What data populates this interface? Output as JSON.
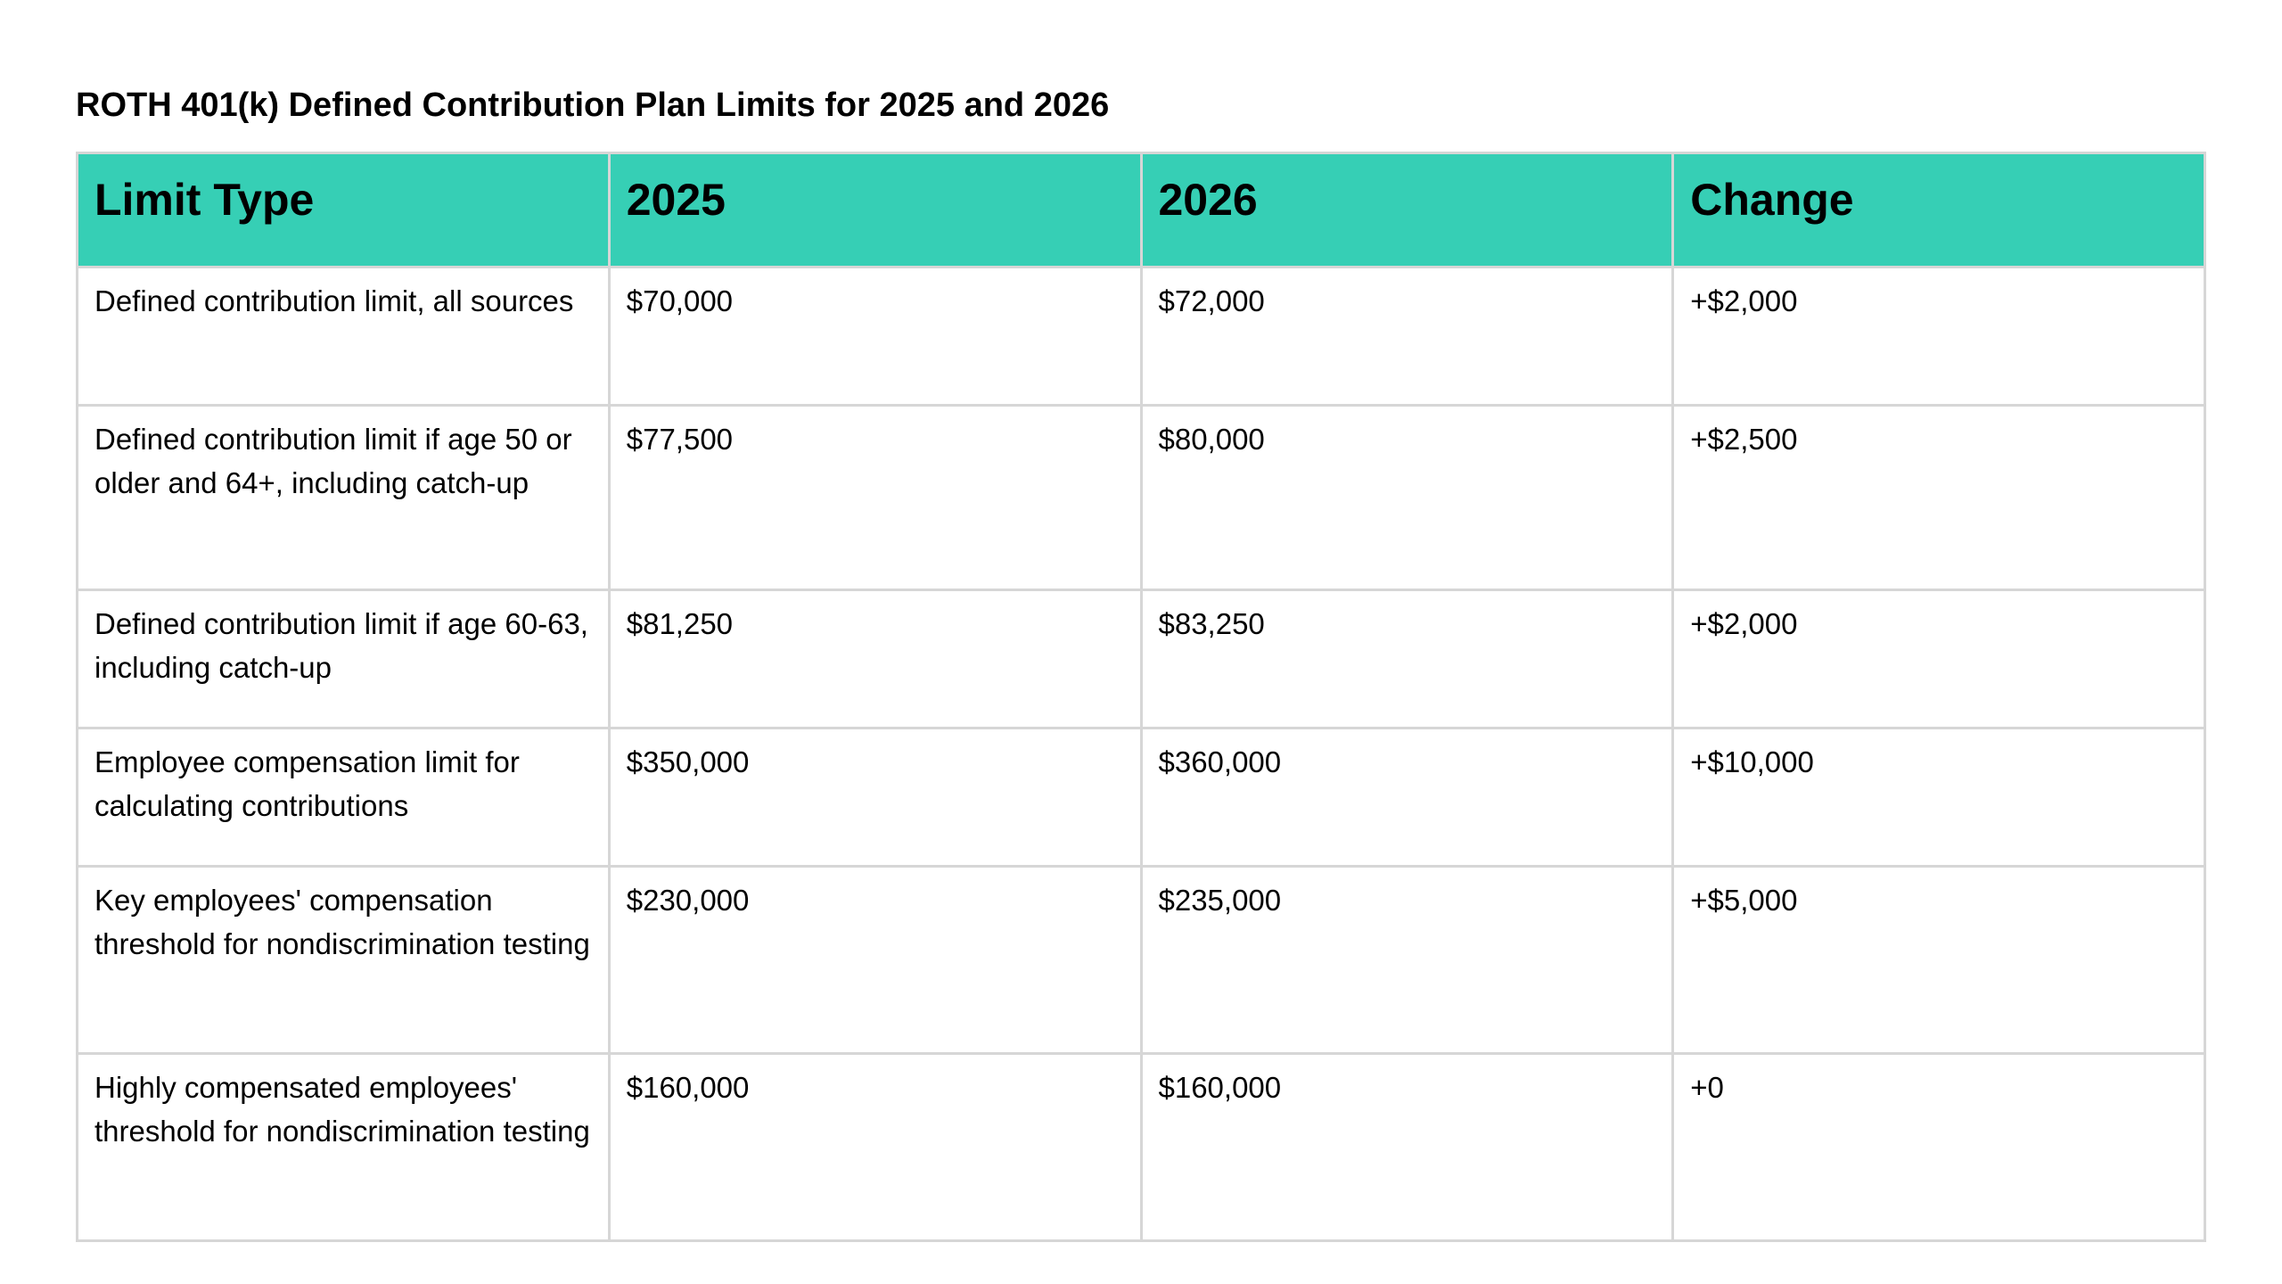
{
  "title": "ROTH 401(k) Defined Contribution Plan Limits for 2025 and 2026",
  "table": {
    "headers": [
      "Limit Type",
      "2025",
      "2026",
      "Change"
    ],
    "header_color": "#36cfb5",
    "rows": [
      [
        "Defined contribution limit, all sources",
        "$70,000",
        "$72,000",
        "+$2,000"
      ],
      [
        "Defined contribution limit if age 50 or older and 64+, including catch-up",
        "$77,500",
        "$80,000",
        "+$2,500"
      ],
      [
        "Defined contribution limit if age 60-63, including catch-up",
        "$81,250",
        "$83,250",
        "+$2,000"
      ],
      [
        "Employee compensation limit for calculating contributions",
        "$350,000",
        "$360,000",
        "+$10,000"
      ],
      [
        "Key employees' compensation threshold for nondiscrimination testing",
        "$230,000",
        "$235,000",
        "+$5,000"
      ],
      [
        "Highly compensated employees' threshold for nondiscrimination testing",
        "$160,000",
        "$160,000",
        "+0"
      ]
    ]
  }
}
